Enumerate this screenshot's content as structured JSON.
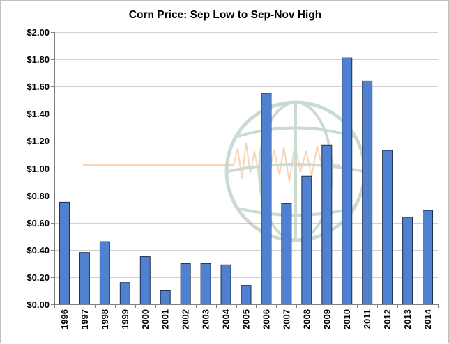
{
  "chart_data": {
    "type": "bar",
    "title": "Corn Price: Sep Low to Sep-Nov High",
    "xlabel": "",
    "ylabel": "",
    "categories": [
      "1996",
      "1997",
      "1998",
      "1999",
      "2000",
      "2001",
      "2002",
      "2003",
      "2004",
      "2005",
      "2006",
      "2007",
      "2008",
      "2009",
      "2010",
      "2011",
      "2012",
      "2013",
      "2014"
    ],
    "values": [
      0.75,
      0.38,
      0.46,
      0.16,
      0.35,
      0.1,
      0.3,
      0.3,
      0.29,
      0.14,
      1.55,
      0.74,
      0.94,
      1.17,
      1.81,
      1.64,
      1.13,
      0.64,
      0.69
    ],
    "ylim": [
      0,
      2.0
    ],
    "yticks": [
      0,
      0.2,
      0.4,
      0.6,
      0.8,
      1.0,
      1.2,
      1.4,
      1.6,
      1.8,
      2.0
    ],
    "ytick_labels": [
      "$0.00",
      "$0.20",
      "$0.40",
      "$0.60",
      "$0.80",
      "$1.00",
      "$1.20",
      "$1.40",
      "$1.60",
      "$1.80",
      "$2.00"
    ],
    "grid": true,
    "legend": "none",
    "colors": {
      "bar_fill": "#4f81d0",
      "bar_stroke": "#1f2f4f",
      "grid": "#d0d0d0",
      "axis": "#808080",
      "watermark_globe": "#9fbfae",
      "watermark_pulse": "#f2b27a"
    }
  }
}
